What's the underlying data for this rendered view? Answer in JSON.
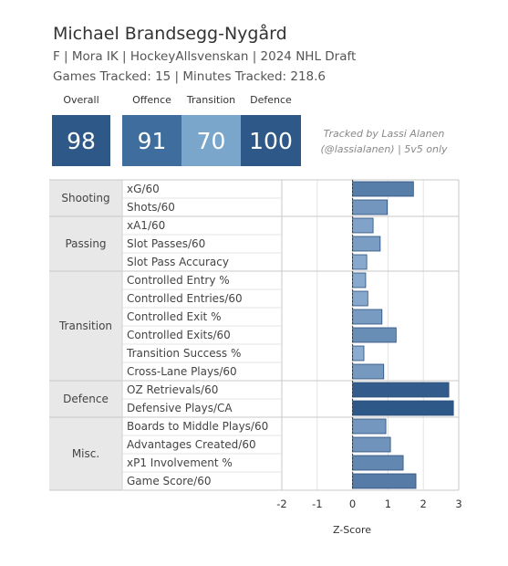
{
  "header": {
    "player_name": "Michael Brandsegg-Nygård",
    "info_line": "F | Mora IK | HockeyAllsvenskan | 2024 NHL Draft",
    "tracked_line": "Games Tracked: 15 | Minutes Tracked: 218.6"
  },
  "ratings": [
    {
      "label": "Overall",
      "value": "98",
      "color": "#2e5888"
    },
    {
      "label": "Offence",
      "value": "91",
      "color": "#3f6e9e"
    },
    {
      "label": "Transition",
      "value": "70",
      "color": "#7aa6cc"
    },
    {
      "label": "Defence",
      "value": "100",
      "color": "#2e5888"
    }
  ],
  "credit": {
    "line1": "Tracked by Lassi Alanen",
    "line2": "(@lassialanen) | 5v5 only"
  },
  "chart_data": {
    "type": "bar",
    "orientation": "horizontal",
    "xlabel": "Z-Score",
    "xlim": [
      -2,
      3
    ],
    "xticks": [
      "-2",
      "-1",
      "0",
      "1",
      "2",
      "3"
    ],
    "grid": true,
    "groups": [
      {
        "name": "Shooting",
        "metrics": [
          {
            "label": "xG/60",
            "value": 1.72
          },
          {
            "label": "Shots/60",
            "value": 0.98
          }
        ]
      },
      {
        "name": "Passing",
        "metrics": [
          {
            "label": "xA1/60",
            "value": 0.58
          },
          {
            "label": "Slot Passes/60",
            "value": 0.78
          },
          {
            "label": "Slot Pass Accuracy",
            "value": 0.4
          }
        ]
      },
      {
        "name": "Transition",
        "metrics": [
          {
            "label": "Controlled Entry %",
            "value": 0.37
          },
          {
            "label": "Controlled Entries/60",
            "value": 0.43
          },
          {
            "label": "Controlled Exit %",
            "value": 0.83
          },
          {
            "label": "Controlled Exits/60",
            "value": 1.23
          },
          {
            "label": "Transition Success %",
            "value": 0.32
          },
          {
            "label": "Cross-Lane Plays/60",
            "value": 0.88
          }
        ]
      },
      {
        "name": "Defence",
        "metrics": [
          {
            "label": "OZ Retrievals/60",
            "value": 2.72
          },
          {
            "label": "Defensive Plays/CA",
            "value": 2.85
          }
        ]
      },
      {
        "name": "Misc.",
        "metrics": [
          {
            "label": "Boards to Middle Plays/60",
            "value": 0.94
          },
          {
            "label": "Advantages Created/60",
            "value": 1.07
          },
          {
            "label": "xP1 Involvement %",
            "value": 1.43
          },
          {
            "label": "Game Score/60",
            "value": 1.79
          }
        ]
      }
    ]
  }
}
